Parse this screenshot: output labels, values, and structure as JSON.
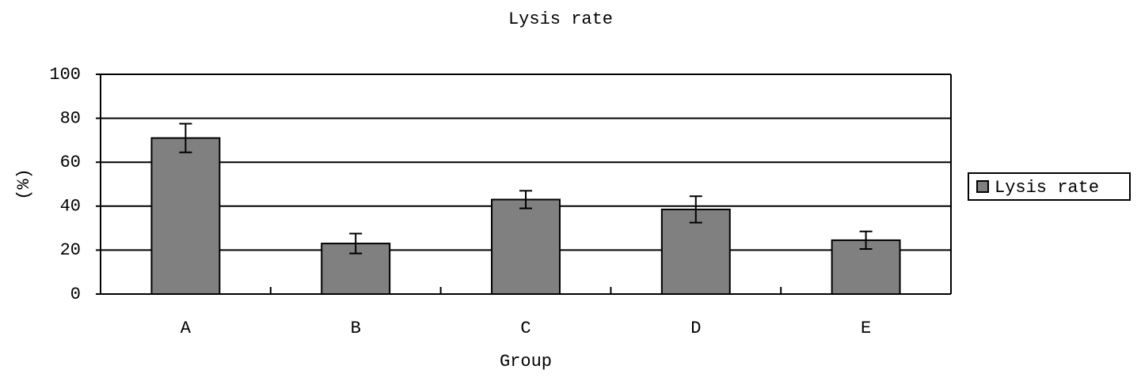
{
  "chart_data": {
    "type": "bar",
    "title": "Lysis rate",
    "x_label": "Group",
    "y_label": "(%)",
    "categories": [
      "A",
      "B",
      "C",
      "D",
      "E"
    ],
    "series": [
      {
        "name": "Lysis rate",
        "color": "#808080",
        "values": [
          71,
          23,
          43,
          38.5,
          24.5
        ],
        "errors": [
          6.5,
          4.5,
          4,
          6,
          4
        ]
      }
    ],
    "ylim": [
      0,
      100
    ],
    "yticks": [
      0,
      20,
      40,
      60,
      80,
      100
    ],
    "grid": true,
    "legend": "right"
  }
}
